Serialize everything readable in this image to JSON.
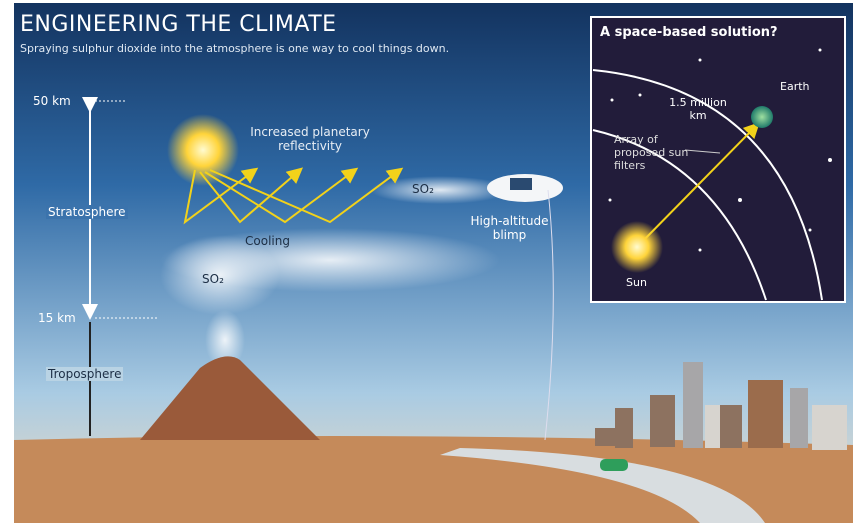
{
  "header": {
    "title": "ENGINEERING THE CLIMATE",
    "subtitle": "Spraying sulphur dioxide into the atmosphere is one way to cool things down."
  },
  "altitude": {
    "top": "50 km",
    "bottom": "15 km"
  },
  "layers": [
    "Stratosphere",
    "Troposphere"
  ],
  "labels": {
    "reflectivity": "Increased planetary reflectivity",
    "cooling": "Cooling",
    "so2_blimp": "SO₂",
    "so2_volcano": "SO₂",
    "blimp": "High-altitude blimp"
  },
  "inset": {
    "title": "A space-based solution?",
    "distance": "1.5 million km",
    "earth": "Earth",
    "filters": "Array of proposed sun filters",
    "sun": "Sun"
  }
}
